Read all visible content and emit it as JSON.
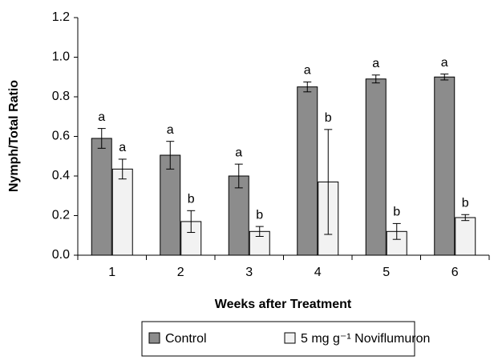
{
  "chart_data": {
    "type": "bar",
    "x_label": "Weeks after Treatment",
    "y_label": "Nymph/Total Ratio",
    "categories": [
      "1",
      "2",
      "3",
      "4",
      "5",
      "6"
    ],
    "series": [
      {
        "name": "Control",
        "color": "#8c8c8c",
        "values": [
          0.59,
          0.505,
          0.4,
          0.85,
          0.89,
          0.9
        ],
        "errors": [
          0.05,
          0.07,
          0.06,
          0.025,
          0.02,
          0.015
        ],
        "letters": [
          "a",
          "a",
          "a",
          "a",
          "a",
          "a"
        ]
      },
      {
        "name": "5 mg g⁻¹ Noviflumuron",
        "color": "#f2f2f2",
        "values": [
          0.435,
          0.17,
          0.12,
          0.37,
          0.12,
          0.19
        ],
        "errors": [
          0.05,
          0.055,
          0.025,
          0.265,
          0.04,
          0.015
        ],
        "letters": [
          "a",
          "b",
          "b",
          "b",
          "b",
          "b"
        ]
      }
    ],
    "ylim": [
      0,
      1.2
    ],
    "yticks": [
      {
        "value": 0,
        "label": "0.0"
      },
      0.2,
      0.4,
      0.6,
      0.8,
      {
        "value": 1,
        "label": "1.0"
      },
      1.2
    ],
    "grid": false
  }
}
